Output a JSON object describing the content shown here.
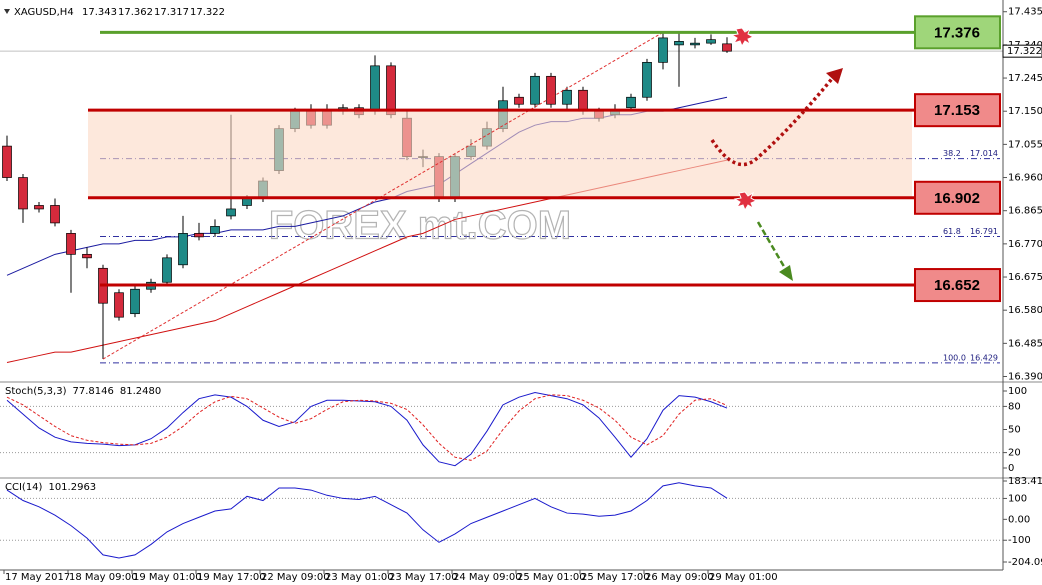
{
  "chart_data": [
    {
      "type": "candlestick",
      "title": "XAGUSD,H4",
      "categories": [
        "17 May 2017",
        null,
        null,
        null,
        "18 May 09:00",
        null,
        null,
        null,
        "19 May 01:00",
        null,
        null,
        null,
        "19 May 17:00",
        null,
        null,
        null,
        "22 May 09:00",
        null,
        null,
        null,
        "23 May 01:00",
        null,
        null,
        null,
        "23 May 17:00",
        null,
        null,
        null,
        "24 May 09:00",
        null,
        null,
        null,
        "25 May 01:00",
        null,
        null,
        null,
        "25 May 17:00",
        null,
        null,
        null,
        "26 May 09:00",
        null,
        null,
        null,
        "29 May 01:00",
        null
      ],
      "open": [
        17.05,
        16.96,
        16.88,
        16.88,
        16.8,
        16.74,
        16.7,
        16.63,
        16.57,
        16.64,
        16.66,
        16.71,
        16.8,
        16.8,
        16.85,
        16.88,
        16.9,
        16.98,
        17.1,
        17.15,
        17.15,
        17.15,
        17.16,
        17.15,
        17.28,
        17.13,
        17.02,
        17.02,
        16.9,
        17.02,
        17.05,
        17.1,
        17.19,
        17.17,
        17.25,
        17.17,
        17.21,
        17.15,
        17.14,
        17.16,
        17.19,
        17.29,
        17.34,
        17.34,
        17.345,
        17.343
      ],
      "high": [
        17.08,
        16.97,
        16.89,
        16.9,
        16.81,
        16.76,
        16.71,
        16.64,
        16.65,
        16.67,
        16.74,
        16.85,
        16.83,
        16.84,
        17.14,
        16.91,
        16.96,
        17.11,
        17.16,
        17.17,
        17.17,
        17.17,
        17.17,
        17.31,
        17.29,
        17.15,
        17.04,
        17.03,
        17.03,
        17.07,
        17.12,
        17.22,
        17.2,
        17.26,
        17.26,
        17.22,
        17.22,
        17.16,
        17.17,
        17.2,
        17.3,
        17.376,
        17.376,
        17.36,
        17.37,
        17.362
      ],
      "low": [
        16.95,
        16.83,
        16.86,
        16.82,
        16.63,
        16.7,
        16.44,
        16.55,
        16.56,
        16.63,
        16.65,
        16.7,
        16.78,
        16.79,
        16.84,
        16.87,
        16.89,
        16.97,
        17.09,
        17.1,
        17.1,
        17.14,
        17.13,
        17.14,
        17.13,
        17.01,
        16.99,
        16.89,
        16.89,
        17.01,
        17.04,
        17.09,
        17.16,
        17.16,
        17.16,
        17.15,
        17.14,
        17.12,
        17.13,
        17.15,
        17.18,
        17.27,
        17.22,
        17.33,
        17.34,
        17.317
      ],
      "close": [
        16.96,
        16.87,
        16.87,
        16.83,
        16.74,
        16.73,
        16.6,
        16.56,
        16.64,
        16.66,
        16.73,
        16.8,
        16.79,
        16.82,
        16.87,
        16.9,
        16.95,
        17.1,
        17.15,
        17.11,
        17.11,
        17.16,
        17.14,
        17.28,
        17.14,
        17.02,
        17.02,
        16.9,
        17.02,
        17.05,
        17.1,
        17.18,
        17.17,
        17.25,
        17.17,
        17.21,
        17.15,
        17.13,
        17.15,
        17.19,
        17.29,
        17.36,
        17.35,
        17.345,
        17.355,
        17.322
      ],
      "up_color": "#1f8a87",
      "down_color": "#d42a3c",
      "series": [
        {
          "color": "#1a1aa0",
          "values": [
            16.68,
            16.7,
            16.72,
            16.74,
            16.75,
            16.76,
            16.77,
            16.77,
            16.78,
            16.78,
            16.79,
            16.79,
            16.8,
            16.8,
            16.81,
            16.81,
            16.81,
            16.82,
            16.82,
            16.83,
            16.84,
            16.85,
            16.87,
            16.89,
            16.9,
            16.92,
            16.93,
            16.94,
            16.97,
            17.0,
            17.03,
            17.06,
            17.09,
            17.11,
            17.12,
            17.12,
            17.13,
            17.13,
            17.14,
            17.14,
            17.15,
            17.15,
            17.16,
            17.17,
            17.18,
            17.19
          ]
        },
        {
          "color": "#d01010",
          "values": [
            16.43,
            16.44,
            16.45,
            16.46,
            16.46,
            16.47,
            16.48,
            16.49,
            16.5,
            16.51,
            16.52,
            16.53,
            16.54,
            16.55,
            16.57,
            16.59,
            16.61,
            16.63,
            16.65,
            16.67,
            16.69,
            16.71,
            16.73,
            16.75,
            16.77,
            16.79,
            16.8,
            16.82,
            16.84,
            16.85,
            16.86,
            16.87,
            16.88,
            16.89,
            16.9,
            16.91,
            16.92,
            16.93,
            16.94,
            16.95,
            16.96,
            16.97,
            16.98,
            16.99,
            17.0,
            17.01
          ]
        }
      ],
      "ylim": [
        16.38,
        17.46
      ],
      "yticks": [
        17.435,
        {
          "value": 17.34,
          "label": "17.340"
        },
        17.245,
        {
          "value": 17.15,
          "label": "17.150"
        },
        17.055,
        {
          "value": 16.96,
          "label": "16.960"
        },
        16.865,
        {
          "value": 16.77,
          "label": "16.770"
        },
        16.675,
        {
          "value": 16.58,
          "label": "16.580"
        },
        16.485,
        {
          "value": 16.39,
          "label": "16.390"
        }
      ],
      "levels": [
        {
          "value": 17.376,
          "color": "#5aa02c",
          "fill": "#9fd67a"
        },
        {
          "value": 17.153,
          "color": "#c00000",
          "fill": "#f08a8a"
        },
        {
          "value": 16.902,
          "color": "#c00000",
          "fill": "#f08a8a"
        },
        {
          "value": 16.652,
          "color": "#c00000",
          "fill": "#f08a8a"
        }
      ],
      "zone_color": "#fbd9c4",
      "fib_levels": [
        {
          "ratio": "38.2",
          "value": 17.014
        },
        {
          "ratio": "61.8",
          "value": 16.791
        },
        {
          "ratio": "100.0",
          "value": 16.429
        }
      ],
      "watermark": "FOREX mt.COM"
    },
    {
      "type": "line",
      "title": "Stoch(5,3,3)",
      "series": [
        {
          "color": "#1a1acc",
          "values": [
            88,
            70,
            52,
            40,
            34,
            32,
            31,
            29,
            30,
            38,
            52,
            72,
            90,
            95,
            92,
            80,
            62,
            54,
            60,
            80,
            88,
            88,
            87,
            86,
            80,
            62,
            30,
            8,
            3,
            18,
            48,
            82,
            92,
            98,
            94,
            90,
            82,
            65,
            40,
            14,
            38,
            75,
            94,
            92,
            86,
            77.8146
          ]
        },
        {
          "color": "#e02020",
          "dash": true,
          "values": [
            92,
            82,
            68,
            54,
            42,
            36,
            33,
            31,
            30,
            32,
            40,
            54,
            72,
            86,
            93,
            90,
            78,
            66,
            58,
            64,
            76,
            86,
            88,
            87,
            84,
            76,
            56,
            32,
            14,
            10,
            22,
            50,
            74,
            90,
            95,
            94,
            88,
            78,
            62,
            40,
            30,
            42,
            70,
            88,
            90,
            81.248
          ],
          "value_labels": [
            null,
            null,
            null,
            null,
            null,
            null,
            null,
            null,
            null,
            null,
            null,
            null,
            null,
            null,
            null,
            null,
            null,
            null,
            null,
            null,
            null,
            null,
            null,
            null,
            null,
            null,
            null,
            null,
            null,
            null,
            null,
            null,
            null,
            null,
            null,
            null,
            null,
            null,
            null,
            null,
            null,
            null,
            null,
            null,
            null,
            "81.2480"
          ]
        }
      ],
      "ylim": [
        0,
        100
      ],
      "yticks": [
        100,
        80,
        50,
        20,
        0
      ],
      "levels": [
        80,
        20
      ]
    },
    {
      "type": "line",
      "title": "CCI(14)",
      "series": [
        {
          "color": "#1a1acc",
          "values": [
            140,
            90,
            60,
            20,
            -30,
            -90,
            -170,
            -185,
            -170,
            -120,
            -60,
            -20,
            10,
            40,
            50,
            110,
            90,
            150,
            150,
            140,
            115,
            100,
            95,
            110,
            70,
            30,
            -50,
            -110,
            -70,
            -20,
            10,
            40,
            70,
            100,
            60,
            30,
            25,
            15,
            20,
            40,
            90,
            160,
            175,
            160,
            150,
            101.2963
          ]
        }
      ],
      "ylim": [
        -204.0984,
        183.4134
      ],
      "yticks": [
        183.4134,
        100,
        {
          "value": 0,
          "label": "0.00"
        },
        -100,
        -204.0984
      ],
      "levels": [
        100,
        -100
      ]
    }
  ]
}
